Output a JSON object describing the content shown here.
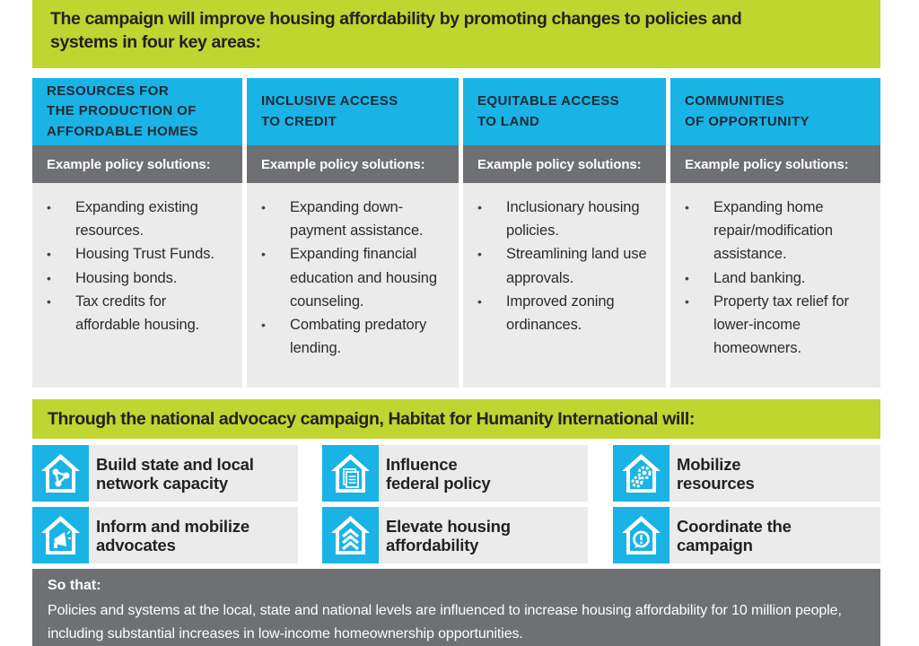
{
  "top_banner": {
    "title_line1": "The campaign will improve housing affordability by promoting changes to policies and",
    "title_line2": "systems in four key areas:"
  },
  "columns": [
    {
      "heading": "RESOURCES FOR THE PRODUCTION OF AFFORDABLE HOMES",
      "heading_lines": [
        "RESOURCES FOR",
        "THE PRODUCTION OF",
        "AFFORDABLE HOMES"
      ],
      "subheading": "Example policy solutions:",
      "items": [
        "Expanding existing resources.",
        "Housing Trust Funds.",
        "Housing bonds.",
        "Tax credits for affordable housing."
      ]
    },
    {
      "heading": "INCLUSIVE ACCESS TO CREDIT",
      "heading_lines": [
        "INCLUSIVE ACCESS",
        "TO CREDIT"
      ],
      "subheading": "Example policy solutions:",
      "items": [
        "Expanding down-payment assistance.",
        "Expanding financial education and housing counseling.",
        "Combating predatory lending."
      ]
    },
    {
      "heading": "EQUITABLE ACCESS TO LAND",
      "heading_lines": [
        "EQUITABLE ACCESS",
        "TO LAND"
      ],
      "subheading": "Example policy solutions:",
      "items": [
        "Inclusionary housing policies.",
        "Streamlining land use approvals.",
        "Improved zoning ordinances."
      ]
    },
    {
      "heading": "COMMUNITIES OF OPPORTUNITY",
      "heading_lines": [
        "COMMUNITIES",
        "OF OPPORTUNITY"
      ],
      "subheading": "Example policy solutions:",
      "items": [
        "Expanding home repair/modification assistance.",
        "Land banking.",
        "Property tax relief for lower-income homeowners."
      ]
    }
  ],
  "mid_banner": {
    "title": "Through the national advocacy campaign, Habitat for Humanity International will:"
  },
  "actions": [
    {
      "label": "Build state and local\nnetwork capacity",
      "icon": "network-house-icon"
    },
    {
      "label": "Influence\nfederal policy",
      "icon": "documents-house-icon"
    },
    {
      "label": "Mobilize\nresources",
      "icon": "gears-house-icon"
    },
    {
      "label": "Inform and mobilize\nadvocates",
      "icon": "megaphone-house-icon"
    },
    {
      "label": "Elevate housing\naffordability",
      "icon": "chevrons-up-house-icon"
    },
    {
      "label": "Coordinate the\ncampaign",
      "icon": "alert-house-icon"
    }
  ],
  "footer": {
    "label": "So that:",
    "text": "Policies and systems at the local, state and national levels are influenced to increase housing affordability for 10 million people, including substantial increases in low-income homeownership opportunities."
  },
  "colors": {
    "green": "#bed62f",
    "blue": "#19b3e6",
    "gray": "#6e7074",
    "light_gray": "#ebebec"
  }
}
